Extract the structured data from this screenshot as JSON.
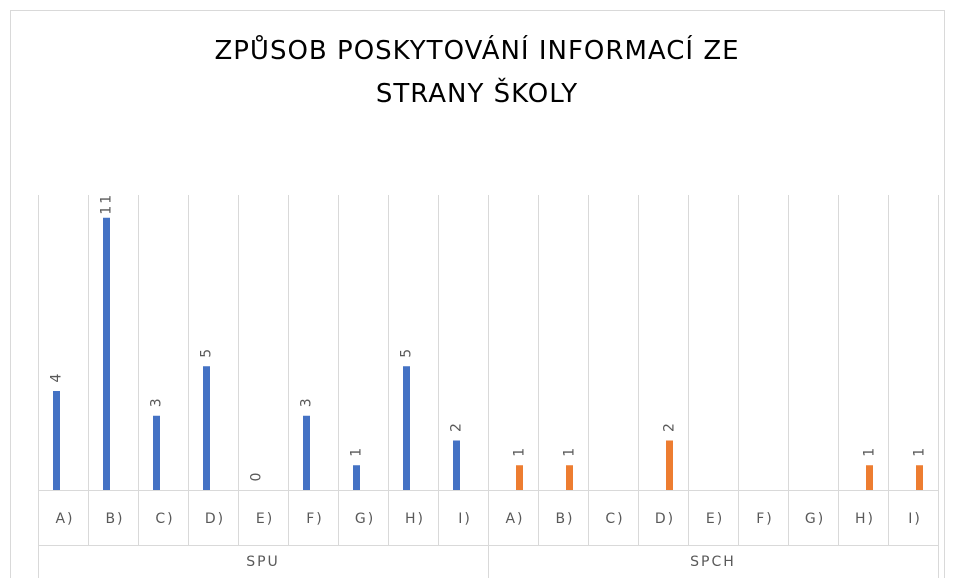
{
  "chart_data": {
    "type": "bar",
    "title": "ZPŮSOB POSKYTOVÁNÍ INFORMACÍ ZE STRANY ŠKOLY",
    "groups": [
      {
        "name": "SPU",
        "color": "#4472c4",
        "categories": [
          "A)",
          "B)",
          "C)",
          "D)",
          "E)",
          "F)",
          "G)",
          "H)",
          "I)"
        ],
        "values": [
          4,
          11,
          3,
          5,
          0,
          3,
          1,
          5,
          2
        ]
      },
      {
        "name": "SPCH",
        "color": "#ed7d31",
        "categories": [
          "A)",
          "B)",
          "C)",
          "D)",
          "E)",
          "F)",
          "G)",
          "H)",
          "I)"
        ],
        "values": [
          1,
          1,
          null,
          2,
          null,
          null,
          null,
          1,
          1
        ]
      }
    ],
    "grid": true
  }
}
